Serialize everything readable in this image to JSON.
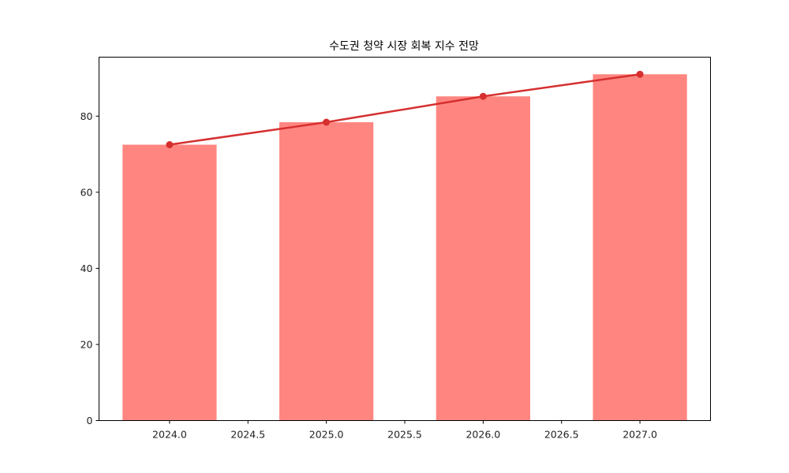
{
  "chart_data": {
    "type": "bar",
    "title": "수도권 청약 시장 회복 지수 전망",
    "xlabel": "",
    "ylabel": "",
    "categories": [
      2024,
      2025,
      2026,
      2027
    ],
    "series": [
      {
        "name": "bar",
        "type": "bar",
        "values": [
          72.5,
          78.4,
          85.2,
          91.0
        ],
        "color": "#ff8680"
      },
      {
        "name": "line",
        "type": "line",
        "values": [
          72.5,
          78.4,
          85.2,
          91.0
        ],
        "color": "#d62f2f",
        "marker": "circle"
      }
    ],
    "xlim": [
      2023.55,
      2027.45
    ],
    "ylim": [
      0,
      95.5
    ],
    "xticks": [
      "2024.0",
      "2024.5",
      "2025.0",
      "2025.5",
      "2026.0",
      "2026.5",
      "2027.0"
    ],
    "yticks": [
      "0",
      "20",
      "40",
      "60",
      "80"
    ],
    "bar_width": 0.6,
    "grid": false,
    "legend": null
  }
}
